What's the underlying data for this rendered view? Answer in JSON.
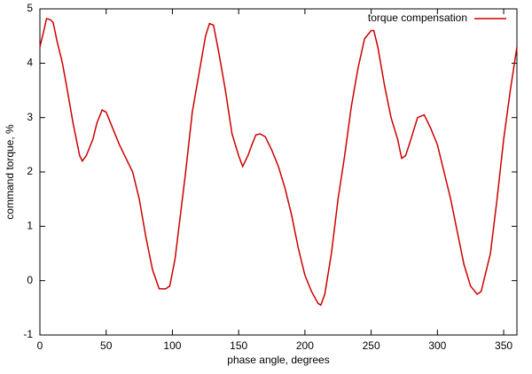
{
  "chart_data": {
    "type": "line",
    "xlabel": "phase angle, degrees",
    "ylabel": "command torque, %",
    "x": [
      0,
      3,
      5,
      8,
      10,
      13,
      17,
      20,
      25,
      30,
      32,
      35,
      40,
      43,
      47,
      50,
      55,
      60,
      65,
      70,
      75,
      80,
      85,
      90,
      95,
      98,
      102,
      105,
      110,
      115,
      120,
      125,
      128,
      131,
      135,
      140,
      145,
      150,
      153,
      157,
      160,
      163,
      166,
      170,
      175,
      180,
      185,
      190,
      195,
      200,
      205,
      210,
      212,
      215,
      220,
      225,
      230,
      235,
      240,
      245,
      250,
      252,
      255,
      260,
      265,
      270,
      273,
      276,
      280,
      285,
      290,
      295,
      300,
      305,
      310,
      315,
      320,
      325,
      330,
      333,
      335,
      340,
      345,
      350,
      355,
      360
    ],
    "series": [
      {
        "name": "torque compensation",
        "color": "#cc0000",
        "values": [
          4.3,
          4.6,
          4.82,
          4.8,
          4.75,
          4.4,
          4.0,
          3.6,
          2.9,
          2.3,
          2.2,
          2.3,
          2.6,
          2.9,
          3.14,
          3.1,
          2.8,
          2.5,
          2.25,
          2.0,
          1.5,
          0.8,
          0.2,
          -0.15,
          -0.15,
          -0.1,
          0.4,
          1.0,
          2.0,
          3.1,
          3.8,
          4.5,
          4.73,
          4.7,
          4.2,
          3.5,
          2.7,
          2.3,
          2.1,
          2.3,
          2.5,
          2.68,
          2.7,
          2.65,
          2.4,
          2.1,
          1.7,
          1.2,
          0.6,
          0.1,
          -0.2,
          -0.42,
          -0.45,
          -0.25,
          0.5,
          1.5,
          2.3,
          3.2,
          3.9,
          4.45,
          4.6,
          4.6,
          4.3,
          3.6,
          3.0,
          2.6,
          2.25,
          2.3,
          2.6,
          3.0,
          3.05,
          2.8,
          2.5,
          2.0,
          1.5,
          0.9,
          0.3,
          -0.1,
          -0.25,
          -0.2,
          0,
          0.5,
          1.5,
          2.6,
          3.5,
          4.3
        ]
      }
    ],
    "xlim": [
      0,
      360
    ],
    "xticks": [
      0,
      50,
      100,
      150,
      200,
      250,
      300,
      350
    ],
    "ylim": [
      -1,
      5
    ],
    "yticks": [
      -1,
      0,
      1,
      2,
      3,
      4,
      5
    ],
    "legend": "top-right",
    "grid": false
  }
}
